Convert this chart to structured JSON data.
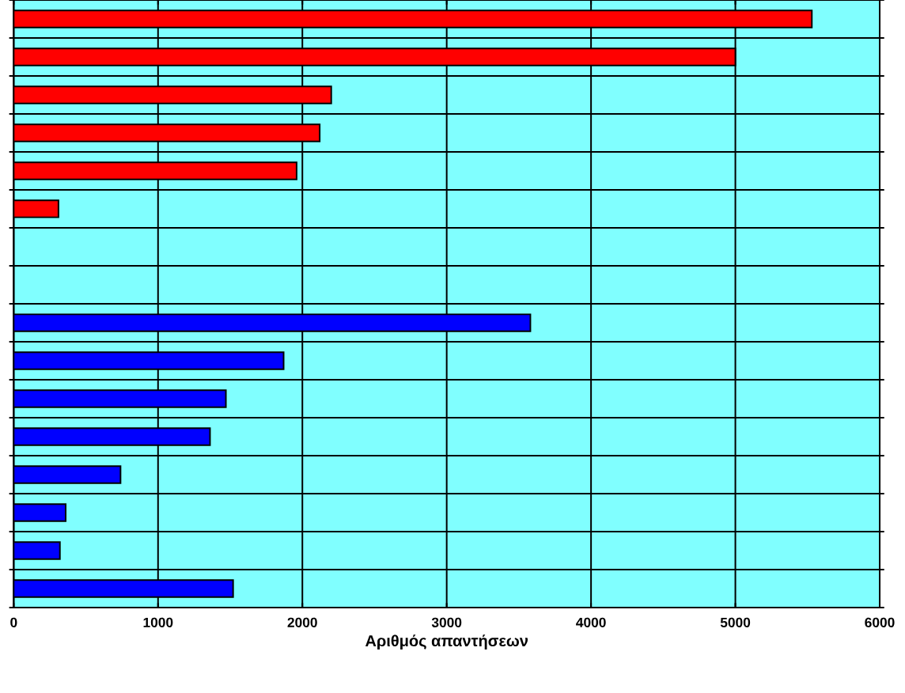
{
  "chart_data": {
    "type": "bar",
    "orientation": "horizontal",
    "xlabel": "Αριθμός απαντήσεων",
    "categories": [
      null,
      null,
      null,
      null,
      null,
      null,
      null,
      null,
      null,
      null,
      null,
      null,
      null,
      null,
      null,
      null
    ],
    "series": [
      {
        "color": "#ff0000",
        "values": [
          5530,
          5000,
          2200,
          2120,
          1960,
          310,
          null,
          null,
          null,
          null,
          null,
          null,
          null,
          null,
          null,
          null
        ]
      },
      {
        "color": "#0000ff",
        "values": [
          null,
          null,
          null,
          null,
          null,
          null,
          null,
          null,
          3580,
          1870,
          1470,
          1360,
          740,
          360,
          320,
          1520
        ]
      }
    ],
    "xlim": [
      0,
      6000
    ],
    "xticks": [
      0,
      1000,
      2000,
      3000,
      4000,
      5000,
      6000
    ],
    "grid": true,
    "tick_labels": "x"
  }
}
